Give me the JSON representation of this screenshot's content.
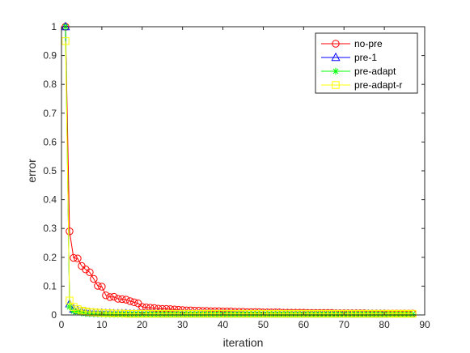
{
  "chart_data": {
    "type": "line",
    "title": "",
    "xlabel": "iteration",
    "ylabel": "error",
    "xlim": [
      0,
      90
    ],
    "ylim": [
      0,
      1
    ],
    "xticks": [
      0,
      10,
      20,
      30,
      40,
      50,
      60,
      70,
      80,
      90
    ],
    "yticks": [
      0,
      0.1,
      0.2,
      0.3,
      0.4,
      0.5,
      0.6,
      0.7,
      0.8,
      0.9,
      1
    ],
    "xtick_labels": [
      "0",
      "10",
      "20",
      "30",
      "40",
      "50",
      "60",
      "70",
      "80",
      "90"
    ],
    "ytick_labels": [
      "0",
      "0.1",
      "0.2",
      "0.3",
      "0.4",
      "0.5",
      "0.6",
      "0.7",
      "0.8",
      "0.9",
      "1"
    ],
    "grid": false,
    "legend_position": "top-right",
    "series": [
      {
        "name": "no-pre",
        "color": "#ff0000",
        "marker": "circle",
        "x": [
          1,
          2,
          3,
          4,
          5,
          6,
          7,
          8,
          9,
          10,
          11,
          12,
          13,
          14,
          15,
          16,
          17,
          18,
          19,
          20,
          21,
          22,
          23,
          24,
          25,
          26,
          27,
          28,
          29,
          30,
          31,
          32,
          33,
          34,
          35,
          36,
          37,
          38,
          39,
          40,
          41,
          42,
          43,
          44,
          45,
          46,
          47,
          48,
          49,
          50,
          51,
          52,
          53,
          54,
          55,
          56,
          57,
          58,
          59,
          60,
          61,
          62,
          63,
          64,
          65,
          66,
          67,
          68,
          69,
          70,
          71,
          72,
          73,
          74,
          75,
          76,
          77,
          78,
          79,
          80,
          81,
          82,
          83,
          84,
          85,
          86,
          87
        ],
        "y": [
          1,
          0.29,
          0.198,
          0.196,
          0.17,
          0.158,
          0.148,
          0.125,
          0.101,
          0.098,
          0.068,
          0.062,
          0.063,
          0.056,
          0.055,
          0.053,
          0.048,
          0.044,
          0.04,
          0.028,
          0.026,
          0.025,
          0.024,
          0.022,
          0.021,
          0.021,
          0.02,
          0.019,
          0.018,
          0.017,
          0.016,
          0.016,
          0.015,
          0.015,
          0.014,
          0.014,
          0.013,
          0.013,
          0.013,
          0.012,
          0.012,
          0.012,
          0.011,
          0.011,
          0.011,
          0.01,
          0.01,
          0.01,
          0.01,
          0.009,
          0.009,
          0.009,
          0.009,
          0.009,
          0.008,
          0.008,
          0.008,
          0.008,
          0.008,
          0.008,
          0.007,
          0.007,
          0.007,
          0.007,
          0.007,
          0.007,
          0.007,
          0.006,
          0.006,
          0.006,
          0.006,
          0.006,
          0.006,
          0.006,
          0.006,
          0.005,
          0.005,
          0.005,
          0.005,
          0.005,
          0.005,
          0.005,
          0.005,
          0.005,
          0.005,
          0.005,
          0.005
        ]
      },
      {
        "name": "pre-1",
        "color": "#0000ff",
        "marker": "triangle",
        "x": [
          1,
          2,
          3,
          4,
          5,
          6,
          7,
          8,
          9,
          10,
          11,
          12,
          13,
          14,
          15,
          16,
          17,
          18,
          19,
          20,
          21,
          22,
          23,
          24,
          25,
          26,
          27,
          28,
          29,
          30,
          31,
          32,
          33,
          34,
          35,
          36,
          37,
          38,
          39,
          40,
          41,
          42,
          43,
          44,
          45,
          46,
          47,
          48,
          49,
          50,
          51,
          52,
          53,
          54,
          55,
          56,
          57,
          58,
          59,
          60,
          61,
          62,
          63,
          64,
          65,
          66,
          67,
          68,
          69,
          70,
          71,
          72,
          73,
          74,
          75,
          76,
          77,
          78,
          79,
          80
        ],
        "y": [
          1,
          0.038,
          0.02,
          0.015,
          0.012,
          0.01,
          0.008,
          0.007,
          0.006,
          0.006,
          0.005,
          0.005,
          0.004,
          0.004,
          0.004,
          0.004,
          0.003,
          0.003,
          0.003,
          0.003,
          0.003,
          0.003,
          0.003,
          0.003,
          0.002,
          0.002,
          0.002,
          0.002,
          0.002,
          0.002,
          0.002,
          0.002,
          0.002,
          0.002,
          0.002,
          0.002,
          0.002,
          0.002,
          0.002,
          0.002,
          0.002,
          0.002,
          0.002,
          0.002,
          0.002,
          0.002,
          0.002,
          0.002,
          0.002,
          0.002,
          0.002,
          0.002,
          0.002,
          0.002,
          0.002,
          0.002,
          0.002,
          0.002,
          0.002,
          0.002,
          0.002,
          0.002,
          0.002,
          0.002,
          0.002,
          0.002,
          0.002,
          0.002,
          0.002,
          0.002,
          0.002,
          0.002,
          0.002,
          0.002,
          0.002,
          0.002,
          0.002,
          0.002,
          0.002,
          0.002
        ]
      },
      {
        "name": "pre-adapt",
        "color": "#00ff00",
        "marker": "star",
        "x": [
          1,
          2,
          3,
          4,
          5,
          6,
          7,
          8,
          9,
          10,
          11,
          12,
          13,
          14,
          15,
          16,
          17,
          18,
          19,
          20,
          21,
          22,
          23,
          24,
          25,
          26,
          27,
          28,
          29,
          30,
          31,
          32,
          33,
          34,
          35,
          36,
          37,
          38,
          39,
          40,
          41,
          42,
          43,
          44,
          45,
          46,
          47,
          48,
          49,
          50,
          51,
          52,
          53,
          54,
          55,
          56,
          57,
          58,
          59,
          60,
          61,
          62,
          63,
          64,
          65,
          66,
          67,
          68,
          69,
          70,
          71,
          72,
          73,
          74,
          75,
          76,
          77,
          78,
          79,
          80,
          81,
          82,
          83,
          84,
          85,
          86,
          87
        ],
        "y": [
          1,
          0.028,
          0.013,
          0.01,
          0.007,
          0.005,
          0.004,
          0.003,
          0.003,
          0.003,
          0.002,
          0.002,
          0.002,
          0.002,
          0.002,
          0.002,
          0.002,
          0.002,
          0.002,
          0.002,
          0.002,
          0.002,
          0.002,
          0.002,
          0.002,
          0.002,
          0.002,
          0.002,
          0.002,
          0.002,
          0.002,
          0.002,
          0.002,
          0.002,
          0.002,
          0.002,
          0.002,
          0.002,
          0.002,
          0.002,
          0.002,
          0.002,
          0.002,
          0.002,
          0.002,
          0.002,
          0.002,
          0.002,
          0.002,
          0.002,
          0.002,
          0.002,
          0.002,
          0.002,
          0.002,
          0.002,
          0.002,
          0.002,
          0.002,
          0.002,
          0.002,
          0.002,
          0.002,
          0.002,
          0.002,
          0.002,
          0.002,
          0.002,
          0.002,
          0.002,
          0.002,
          0.002,
          0.002,
          0.002,
          0.002,
          0.002,
          0.002,
          0.002,
          0.002,
          0.002,
          0.002,
          0.002,
          0.002,
          0.002,
          0.002,
          0.002,
          0.002
        ]
      },
      {
        "name": "pre-adapt-r",
        "color": "#ffff00",
        "marker": "square",
        "x": [
          1,
          2,
          3,
          4,
          5,
          6,
          7,
          8,
          9,
          10,
          11,
          12,
          13,
          14,
          15,
          16,
          17,
          18,
          19,
          20,
          21,
          22,
          23,
          24,
          25,
          26,
          27,
          28,
          29,
          30,
          31,
          32,
          33,
          34,
          35,
          36,
          37,
          38,
          39,
          40,
          41,
          42,
          43,
          44,
          45,
          46,
          47,
          48,
          49,
          50,
          51,
          52,
          53,
          54,
          55,
          56,
          57,
          58,
          59,
          60,
          61,
          62,
          63,
          64,
          65,
          66,
          67,
          68,
          69,
          70,
          71,
          72,
          73,
          74,
          75,
          76,
          77,
          78,
          79,
          80,
          81,
          82,
          83,
          84,
          85,
          86,
          87
        ],
        "y": [
          0.95,
          0.05,
          0.028,
          0.02,
          0.015,
          0.012,
          0.01,
          0.009,
          0.008,
          0.007,
          0.006,
          0.006,
          0.005,
          0.005,
          0.005,
          0.004,
          0.004,
          0.004,
          0.004,
          0.004,
          0.004,
          0.004,
          0.004,
          0.004,
          0.004,
          0.004,
          0.004,
          0.004,
          0.004,
          0.004,
          0.004,
          0.004,
          0.004,
          0.004,
          0.004,
          0.004,
          0.004,
          0.004,
          0.004,
          0.004,
          0.004,
          0.004,
          0.004,
          0.004,
          0.004,
          0.004,
          0.004,
          0.004,
          0.004,
          0.004,
          0.004,
          0.004,
          0.004,
          0.004,
          0.004,
          0.004,
          0.004,
          0.004,
          0.004,
          0.004,
          0.004,
          0.004,
          0.004,
          0.004,
          0.004,
          0.004,
          0.004,
          0.004,
          0.004,
          0.004,
          0.004,
          0.004,
          0.004,
          0.004,
          0.004,
          0.004,
          0.004,
          0.004,
          0.004,
          0.004,
          0.004,
          0.004,
          0.004,
          0.004,
          0.004,
          0.004,
          0.004
        ]
      }
    ]
  }
}
